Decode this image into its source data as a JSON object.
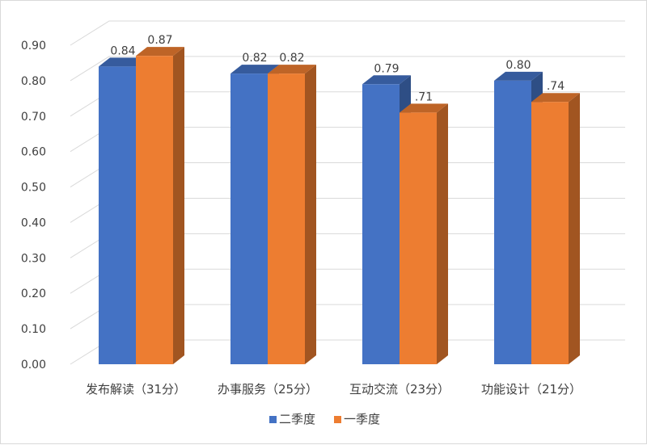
{
  "chart_data": {
    "type": "bar",
    "style": "3d-clustered-column",
    "categories": [
      "发布解读（31分）",
      "办事服务（25分）",
      "互动交流（23分）",
      "功能设计（21分）"
    ],
    "series": [
      {
        "name": "二季度",
        "values": [
          0.84,
          0.82,
          0.79,
          0.8
        ],
        "labels": [
          "0.84",
          "0.82",
          "0.79",
          "0.80"
        ],
        "color": "#4472C4"
      },
      {
        "name": "一季度",
        "values": [
          0.87,
          0.82,
          0.71,
          0.74
        ],
        "labels": [
          "0.87",
          "0.82",
          ".71",
          ".74"
        ],
        "color": "#ED7D31"
      }
    ],
    "ylim": [
      0,
      0.9
    ],
    "yticks": [
      "0.00",
      "0.10",
      "0.20",
      "0.30",
      "0.40",
      "0.50",
      "0.60",
      "0.70",
      "0.80",
      "0.90"
    ],
    "grid": true,
    "legend_position": "bottom"
  }
}
